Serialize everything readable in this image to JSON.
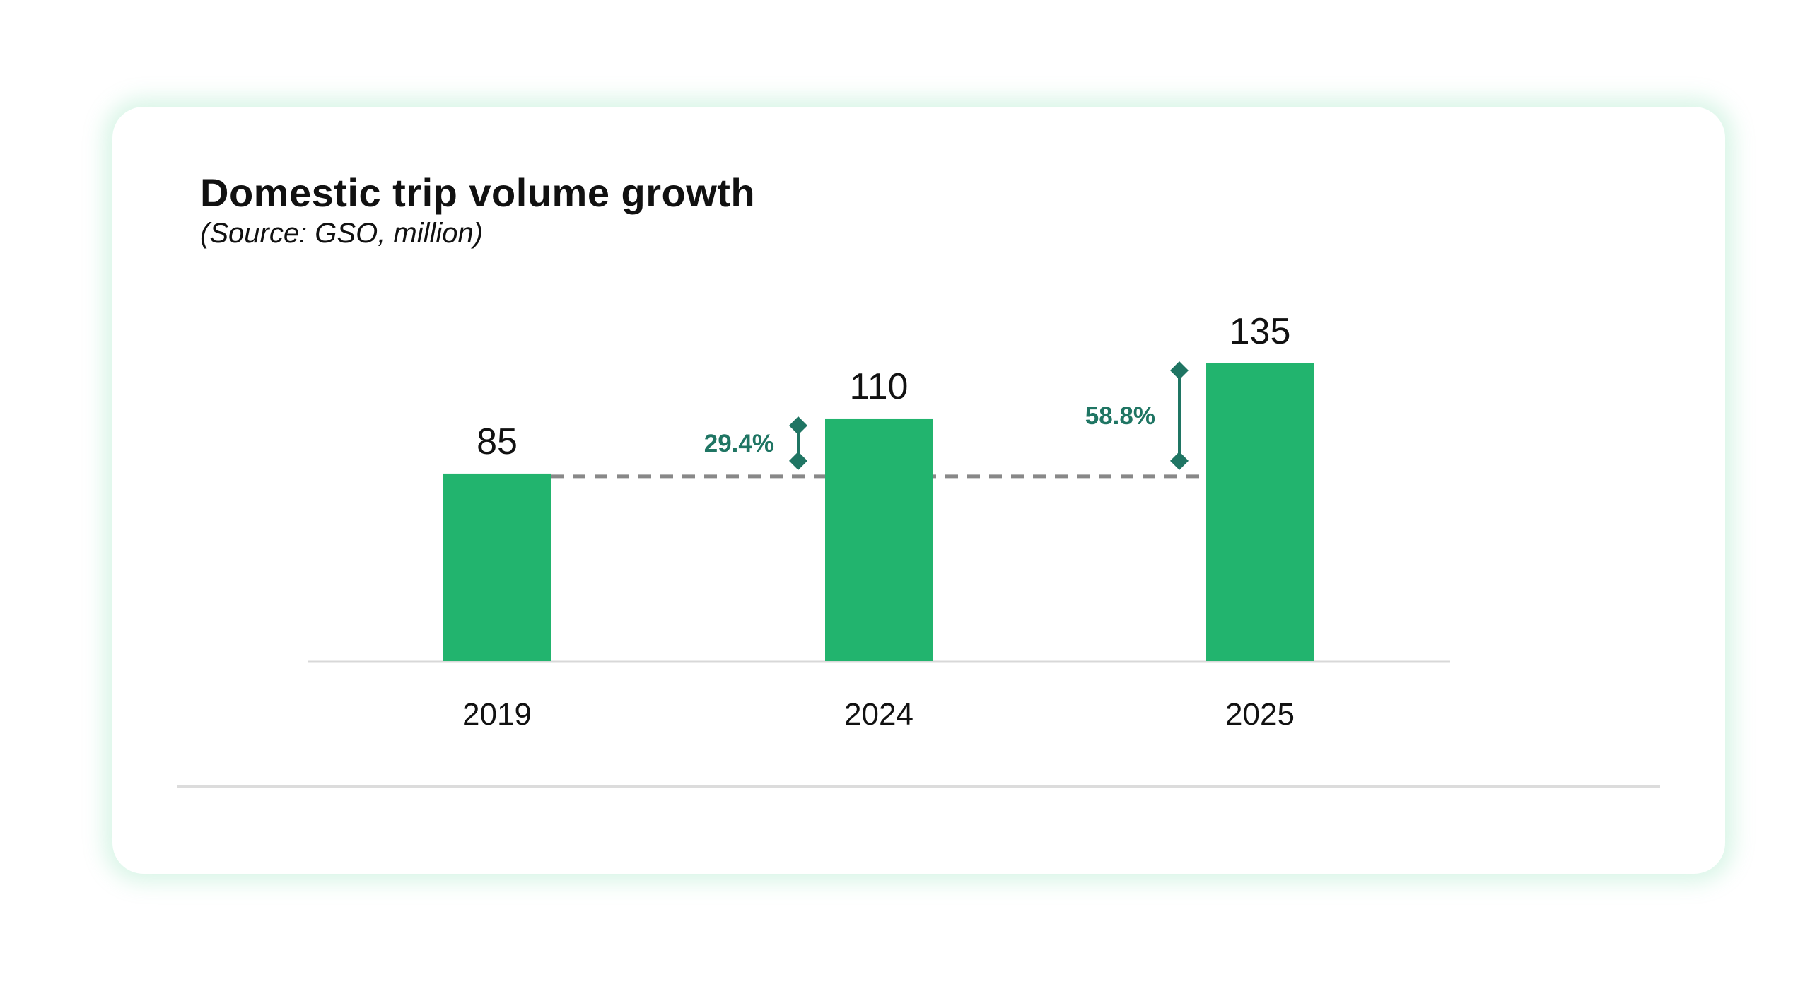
{
  "title": "Domestic trip volume growth",
  "subtitle": "(Source: GSO, million)",
  "colors": {
    "bar": "#22b46e",
    "annotation": "#1f7563",
    "dashed": "#888888",
    "axis": "#d8d8d8"
  },
  "chart_data": {
    "type": "bar",
    "title": "Domestic trip volume growth",
    "subtitle": "(Source: GSO, million)",
    "categories": [
      "2019",
      "2024",
      "2025"
    ],
    "values": [
      85,
      110,
      135
    ],
    "data_labels": [
      "85",
      "110",
      "135"
    ],
    "ylim": [
      0,
      135
    ],
    "grid": false,
    "reference_line": {
      "value": 85,
      "style": "dashed"
    },
    "annotations": [
      {
        "category": "2024",
        "label": "29.4%",
        "from": 85,
        "to": 110
      },
      {
        "category": "2025",
        "label": "58.8%",
        "from": 85,
        "to": 135
      }
    ]
  }
}
